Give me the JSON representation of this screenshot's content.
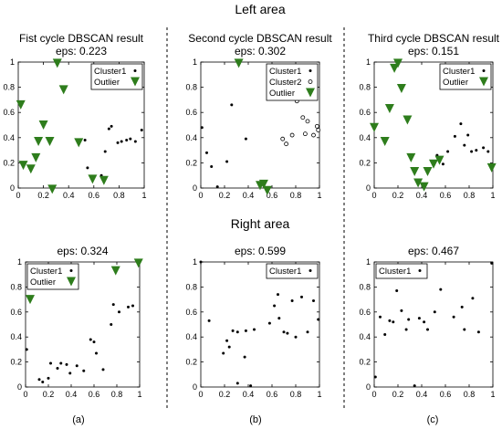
{
  "figure": {
    "top_heading": "Left area",
    "middle_heading": "Right area",
    "captions": [
      "(a)",
      "(b)",
      "(c)"
    ]
  },
  "colors": {
    "outlier": "#2e7d1c",
    "points": "#000000",
    "divider": "#000000"
  },
  "chart_data": [
    {
      "id": "a-left",
      "type": "scatter",
      "title": "Fist cycle DBSCAN result",
      "subtitle": "eps: 0.223",
      "xlim": [
        0,
        1
      ],
      "ylim": [
        0,
        1
      ],
      "xticks": [
        "0",
        "0.2",
        "0.4",
        "0.6",
        "0.8",
        "1"
      ],
      "yticks": [
        "0",
        "0.2",
        "0.4",
        "0.6",
        "0.8",
        "1"
      ],
      "legend": "top-right",
      "series": [
        {
          "name": "Cluster1",
          "marker": "dot",
          "x": [
            0.53,
            0.55,
            0.66,
            0.69,
            0.72,
            0.74,
            0.79,
            0.82,
            0.86,
            0.89,
            0.93,
            0.98
          ],
          "y": [
            0.38,
            0.16,
            0.1,
            0.29,
            0.47,
            0.49,
            0.36,
            0.37,
            0.38,
            0.39,
            0.37,
            0.46
          ]
        },
        {
          "name": "Outlier",
          "marker": "triangle-down",
          "x": [
            0.02,
            0.04,
            0.1,
            0.14,
            0.16,
            0.2,
            0.25,
            0.27,
            0.31,
            0.36,
            0.48,
            0.59,
            0.68
          ],
          "y": [
            0.66,
            0.18,
            0.15,
            0.24,
            0.37,
            0.5,
            0.37,
            -0.01,
            0.99,
            0.78,
            0.36,
            0.07,
            0.06
          ]
        }
      ]
    },
    {
      "id": "b-left",
      "type": "scatter",
      "title": "Second cycle DBSCAN result",
      "subtitle": "eps: 0.302",
      "xlim": [
        0,
        1
      ],
      "ylim": [
        0,
        1
      ],
      "xticks": [
        "0",
        "0.2",
        "0.4",
        "0.6",
        "0.8",
        "1"
      ],
      "yticks": [
        "0",
        "0.2",
        "0.4",
        "0.6",
        "0.8",
        "1"
      ],
      "legend": "top-right",
      "series": [
        {
          "name": "Cluster1",
          "marker": "dot",
          "x": [
            0.01,
            0.05,
            0.09,
            0.14,
            0.22,
            0.26,
            0.38
          ],
          "y": [
            0.48,
            0.28,
            0.17,
            0.01,
            0.21,
            0.66,
            0.39
          ]
        },
        {
          "name": "Cluster2",
          "marker": "open-circle",
          "x": [
            0.69,
            0.72,
            0.77,
            0.81,
            0.86,
            0.88,
            0.9,
            0.95,
            0.98,
            0.99
          ],
          "y": [
            0.39,
            0.35,
            0.42,
            0.69,
            0.56,
            0.43,
            0.53,
            0.42,
            0.49,
            0.46
          ]
        },
        {
          "name": "Outlier",
          "marker": "triangle-down",
          "x": [
            0.32,
            0.5,
            0.53,
            0.56
          ],
          "y": [
            0.99,
            0.02,
            0.03,
            -0.02
          ]
        }
      ]
    },
    {
      "id": "c-left",
      "type": "scatter",
      "title": "Third cycle DBSCAN result",
      "subtitle": "eps: 0.151",
      "xlim": [
        0,
        1
      ],
      "ylim": [
        0,
        1
      ],
      "xticks": [
        "0",
        "0.2",
        "0.4",
        "0.6",
        "0.8",
        "1"
      ],
      "yticks": [
        "0",
        "0.2",
        "0.4",
        "0.6",
        "0.8",
        "1"
      ],
      "legend": "top-right",
      "series": [
        {
          "name": "Cluster1",
          "marker": "dot",
          "x": [
            0.53,
            0.58,
            0.62,
            0.68,
            0.73,
            0.76,
            0.79,
            0.82,
            0.86,
            0.92,
            0.96
          ],
          "y": [
            0.26,
            0.19,
            0.29,
            0.41,
            0.51,
            0.34,
            0.42,
            0.29,
            0.3,
            0.32,
            0.29
          ]
        },
        {
          "name": "Outlier",
          "marker": "triangle-down",
          "x": [
            0.0,
            0.09,
            0.13,
            0.17,
            0.2,
            0.23,
            0.28,
            0.31,
            0.34,
            0.37,
            0.42,
            0.45,
            0.5,
            0.55,
            0.99
          ],
          "y": [
            0.48,
            0.37,
            0.63,
            0.95,
            0.99,
            0.79,
            0.54,
            0.24,
            0.13,
            0.04,
            0.01,
            0.13,
            0.19,
            0.22,
            0.16
          ]
        }
      ]
    },
    {
      "id": "a-right",
      "type": "scatter",
      "title": "",
      "subtitle": "eps: 0.324",
      "xlim": [
        0,
        1
      ],
      "ylim": [
        0,
        1
      ],
      "xticks": [
        "0",
        "0.2",
        "0.4",
        "0.6",
        "0.8",
        "1"
      ],
      "yticks": [
        "0",
        "0.2",
        "0.4",
        "0.6",
        "0.8",
        "1"
      ],
      "legend": "top-left",
      "series": [
        {
          "name": "Cluster1",
          "marker": "dot",
          "x": [
            0.01,
            0.12,
            0.15,
            0.2,
            0.22,
            0.28,
            0.31,
            0.36,
            0.39,
            0.45,
            0.51,
            0.57,
            0.6,
            0.62,
            0.68,
            0.75,
            0.77,
            0.82,
            0.9,
            0.94
          ],
          "y": [
            0.3,
            0.06,
            0.04,
            0.07,
            0.19,
            0.15,
            0.19,
            0.18,
            0.11,
            0.17,
            0.13,
            0.38,
            0.36,
            0.27,
            0.14,
            0.5,
            0.66,
            0.6,
            0.64,
            0.65
          ]
        },
        {
          "name": "Outlier",
          "marker": "triangle-down",
          "x": [
            0.04,
            0.79,
            0.99
          ],
          "y": [
            0.7,
            0.93,
            0.99
          ]
        }
      ]
    },
    {
      "id": "b-right",
      "type": "scatter",
      "title": "",
      "subtitle": "eps: 0.599",
      "xlim": [
        0,
        1
      ],
      "ylim": [
        0,
        1
      ],
      "xticks": [
        "0",
        "0.2",
        "0.4",
        "0.6",
        "0.8",
        "1"
      ],
      "yticks": [
        "0",
        "0.2",
        "0.4",
        "0.6",
        "0.8",
        "1"
      ],
      "legend": "top-right",
      "series": [
        {
          "name": "Cluster1",
          "marker": "dot",
          "x": [
            0.0,
            0.07,
            0.19,
            0.22,
            0.24,
            0.27,
            0.31,
            0.31,
            0.37,
            0.38,
            0.42,
            0.45,
            0.58,
            0.62,
            0.65,
            0.66,
            0.7,
            0.73,
            0.77,
            0.8,
            0.85,
            0.9,
            0.95,
            0.99
          ],
          "y": [
            1.0,
            0.53,
            0.27,
            0.37,
            0.32,
            0.45,
            0.44,
            0.03,
            0.24,
            0.45,
            0.01,
            0.46,
            0.51,
            0.65,
            0.74,
            0.55,
            0.44,
            0.43,
            0.69,
            0.4,
            0.72,
            0.44,
            0.69,
            0.54
          ]
        }
      ]
    },
    {
      "id": "c-right",
      "type": "scatter",
      "title": "",
      "subtitle": "eps: 0.467",
      "xlim": [
        0,
        1
      ],
      "ylim": [
        0,
        1
      ],
      "xticks": [
        "0",
        "0.2",
        "0.4",
        "0.6",
        "0.8",
        "1"
      ],
      "yticks": [
        "0",
        "0.2",
        "0.4",
        "0.6",
        "0.8",
        "1"
      ],
      "legend": "top-left",
      "series": [
        {
          "name": "Cluster1",
          "marker": "dot",
          "x": [
            0.01,
            0.05,
            0.09,
            0.13,
            0.16,
            0.19,
            0.23,
            0.27,
            0.29,
            0.34,
            0.38,
            0.42,
            0.45,
            0.51,
            0.56,
            0.67,
            0.74,
            0.76,
            0.83,
            0.88,
            0.99
          ],
          "y": [
            0.08,
            0.56,
            0.42,
            0.53,
            0.52,
            0.77,
            0.61,
            0.46,
            0.54,
            0.01,
            0.55,
            0.52,
            0.46,
            0.6,
            0.78,
            0.56,
            0.64,
            0.46,
            0.71,
            0.44,
            0.99
          ]
        }
      ]
    }
  ]
}
